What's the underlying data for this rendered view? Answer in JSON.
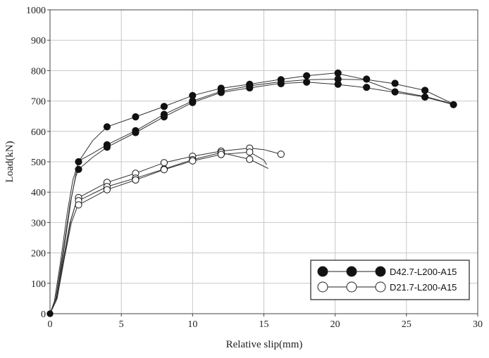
{
  "chart_data": {
    "type": "line",
    "title": "",
    "xlabel": "Relative slip(mm)",
    "ylabel": "Load(kN)",
    "xlim": [
      0,
      30
    ],
    "ylim": [
      0,
      1000
    ],
    "xticks": [
      "0",
      "5",
      "10",
      "15",
      "20",
      "25",
      "30"
    ],
    "yticks": [
      "0",
      "100",
      "200",
      "300",
      "400",
      "500",
      "600",
      "700",
      "800",
      "900",
      "1000"
    ],
    "grid": true,
    "legend_position": "bottom-right",
    "series": [
      {
        "name": "D42.7-L200-A15",
        "marker": "filled-circle",
        "color": "#111111",
        "curves": [
          [
            [
              0,
              0
            ],
            [
              0.3,
              40
            ],
            [
              0.7,
              160
            ],
            [
              1.2,
              330
            ],
            [
              1.6,
              440
            ],
            [
              2,
              500
            ],
            [
              3,
              570
            ],
            [
              4,
              615
            ],
            [
              6,
              648
            ],
            [
              8,
              682
            ],
            [
              10,
              718
            ],
            [
              12,
              742
            ],
            [
              14,
              755
            ],
            [
              16,
              770
            ],
            [
              18,
              783
            ],
            [
              20,
              792
            ],
            [
              22,
              772
            ],
            [
              24,
              758
            ],
            [
              26.3,
              735
            ],
            [
              28.3,
              690
            ]
          ],
          [
            [
              0,
              0
            ],
            [
              0.4,
              50
            ],
            [
              0.9,
              200
            ],
            [
              1.4,
              360
            ],
            [
              1.8,
              450
            ],
            [
              2,
              475
            ],
            [
              3,
              515
            ],
            [
              4,
              548
            ],
            [
              6,
              596
            ],
            [
              8,
              648
            ],
            [
              10,
              695
            ],
            [
              12,
              728
            ],
            [
              14,
              743
            ],
            [
              16,
              757
            ],
            [
              18,
              762
            ],
            [
              20,
              755
            ],
            [
              22,
              745
            ],
            [
              24,
              730
            ],
            [
              26.3,
              713
            ],
            [
              28.3,
              688
            ]
          ],
          [
            [
              0,
              0
            ],
            [
              0.5,
              60
            ],
            [
              1.0,
              220
            ],
            [
              1.5,
              380
            ],
            [
              1.9,
              480
            ],
            [
              2,
              502
            ],
            [
              3,
              528
            ],
            [
              4,
              556
            ],
            [
              6,
              602
            ],
            [
              8,
              656
            ],
            [
              10,
              700
            ],
            [
              12,
              732
            ],
            [
              14,
              750
            ],
            [
              16,
              762
            ],
            [
              18,
              770
            ],
            [
              20,
              772
            ],
            [
              22,
              770
            ],
            [
              24,
              735
            ],
            [
              26.3,
              715
            ],
            [
              28.3,
              690
            ]
          ]
        ],
        "markers": [
          [
            2,
            500
          ],
          [
            2,
            475
          ],
          [
            4,
            615
          ],
          [
            4,
            556
          ],
          [
            4,
            548
          ],
          [
            6,
            648
          ],
          [
            6,
            602
          ],
          [
            6,
            596
          ],
          [
            8,
            682
          ],
          [
            8,
            656
          ],
          [
            8,
            648
          ],
          [
            10,
            718
          ],
          [
            10,
            700
          ],
          [
            10,
            695
          ],
          [
            12,
            742
          ],
          [
            12,
            732
          ],
          [
            12,
            728
          ],
          [
            14,
            755
          ],
          [
            14,
            750
          ],
          [
            14,
            743
          ],
          [
            16.2,
            770
          ],
          [
            16.2,
            757
          ],
          [
            18,
            783
          ],
          [
            18,
            762
          ],
          [
            20.2,
            792
          ],
          [
            20.2,
            772
          ],
          [
            20.2,
            755
          ],
          [
            22.2,
            772
          ],
          [
            22.2,
            745
          ],
          [
            24.2,
            758
          ],
          [
            24.2,
            730
          ],
          [
            26.3,
            735
          ],
          [
            26.3,
            713
          ],
          [
            28.3,
            688
          ]
        ]
      },
      {
        "name": "D21.7-L200-A15",
        "marker": "open-circle",
        "color": "#111111",
        "curves": [
          [
            [
              0,
              0
            ],
            [
              0.4,
              40
            ],
            [
              0.9,
              170
            ],
            [
              1.4,
              300
            ],
            [
              1.8,
              360
            ],
            [
              2,
              382
            ],
            [
              4,
              432
            ],
            [
              6,
              462
            ],
            [
              8,
              497
            ],
            [
              10,
              518
            ],
            [
              12,
              535
            ],
            [
              14,
              545
            ],
            [
              15,
              540
            ],
            [
              16.2,
              525
            ]
          ],
          [
            [
              0,
              0
            ],
            [
              0.5,
              50
            ],
            [
              1.0,
              180
            ],
            [
              1.5,
              300
            ],
            [
              1.9,
              350
            ],
            [
              2,
              358
            ],
            [
              4,
              408
            ],
            [
              6,
              440
            ],
            [
              8,
              474
            ],
            [
              10,
              503
            ],
            [
              12,
              524
            ],
            [
              14,
              532
            ],
            [
              15,
              505
            ],
            [
              15.2,
              490
            ]
          ],
          [
            [
              0,
              0
            ],
            [
              0.45,
              45
            ],
            [
              0.95,
              175
            ],
            [
              1.45,
              305
            ],
            [
              1.85,
              370
            ],
            [
              2,
              372
            ],
            [
              4,
              418
            ],
            [
              6,
              446
            ],
            [
              8,
              476
            ],
            [
              10,
              507
            ],
            [
              12,
              530
            ],
            [
              14,
              508
            ],
            [
              15.3,
              478
            ]
          ]
        ],
        "markers": [
          [
            2,
            382
          ],
          [
            2,
            372
          ],
          [
            2,
            358
          ],
          [
            4,
            432
          ],
          [
            4,
            418
          ],
          [
            4,
            408
          ],
          [
            6,
            462
          ],
          [
            6,
            446
          ],
          [
            6,
            440
          ],
          [
            8,
            497
          ],
          [
            8,
            476
          ],
          [
            8,
            474
          ],
          [
            10,
            518
          ],
          [
            10,
            507
          ],
          [
            10,
            503
          ],
          [
            12,
            535
          ],
          [
            12,
            530
          ],
          [
            12,
            524
          ],
          [
            14,
            545
          ],
          [
            14,
            532
          ],
          [
            14,
            508
          ],
          [
            16.2,
            525
          ]
        ]
      }
    ]
  }
}
